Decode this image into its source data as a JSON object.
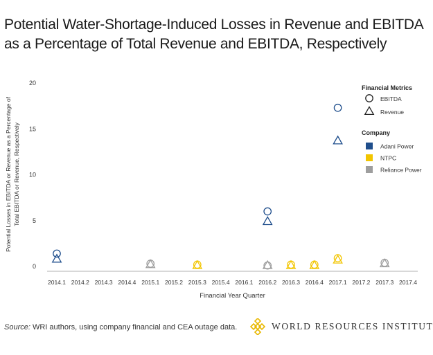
{
  "title_lines": [
    "Potential Water-Shortage-Induced Losses in Revenue and EBITDA",
    "as a Percentage of Total Revenue and EBITDA, Respectively"
  ],
  "source": {
    "label": "Source:",
    "text": "WRI authors, using company financial and CEA outage data."
  },
  "brand": {
    "name": "WORLD RESOURCES INSTITUTE",
    "logo_icon": "wri-knot-logo",
    "logo_color": "#e8b800"
  },
  "colors": {
    "Adani Power": "#1f4e8c",
    "NTPC": "#f2c500",
    "Reliance Power": "#9e9e9e",
    "axis": "#999999"
  },
  "chart_data": {
    "type": "scatter",
    "title": "Potential Water-Shortage-Induced Losses in Revenue and EBITDA as a Percentage of Total Revenue and EBITDA, Respectively",
    "xlabel": "Financial Year Quarter",
    "ylabel_lines": [
      "Potential Losses in EBITDA or Revenue as a Percentage of",
      "Total EBITDA or Revenue, Respectively"
    ],
    "categories": [
      "2014.1",
      "2014.2",
      "2014.3",
      "2014.4",
      "2015.1",
      "2015.2",
      "2015.3",
      "2015.4",
      "2016.1",
      "2016.2",
      "2016.3",
      "2016.4",
      "2017.1",
      "2017.2",
      "2017.3",
      "2017.4"
    ],
    "ylim": [
      0,
      20
    ],
    "yticks": [
      "0",
      "5",
      "10",
      "15",
      "20"
    ],
    "grid": false,
    "legend_position": "right",
    "legend": {
      "metrics_title": "Financial Metrics",
      "metrics": [
        {
          "name": "EBITDA",
          "marker": "circle"
        },
        {
          "name": "Revenue",
          "marker": "triangle"
        }
      ],
      "company_title": "Company",
      "companies": [
        "Adani Power",
        "NTPC",
        "Reliance Power"
      ]
    },
    "series": [
      {
        "company": "Adani Power",
        "metric": "EBITDA",
        "points": [
          [
            "2014.1",
            1.4
          ],
          [
            "2016.2",
            6.0
          ],
          [
            "2017.1",
            17.3
          ]
        ]
      },
      {
        "company": "Adani Power",
        "metric": "Revenue",
        "points": [
          [
            "2014.1",
            0.8
          ],
          [
            "2016.2",
            4.9
          ],
          [
            "2017.1",
            13.7
          ]
        ]
      },
      {
        "company": "NTPC",
        "metric": "EBITDA",
        "points": [
          [
            "2015.3",
            0.2
          ],
          [
            "2016.3",
            0.2
          ],
          [
            "2016.4",
            0.2
          ],
          [
            "2017.1",
            0.9
          ]
        ]
      },
      {
        "company": "NTPC",
        "metric": "Revenue",
        "points": [
          [
            "2015.3",
            0.1
          ],
          [
            "2016.3",
            0.1
          ],
          [
            "2016.4",
            0.1
          ],
          [
            "2017.1",
            0.7
          ]
        ]
      },
      {
        "company": "Reliance Power",
        "metric": "EBITDA",
        "points": [
          [
            "2015.1",
            0.3
          ],
          [
            "2016.2",
            0.1
          ],
          [
            "2017.3",
            0.4
          ]
        ]
      },
      {
        "company": "Reliance Power",
        "metric": "Revenue",
        "points": [
          [
            "2015.1",
            0.2
          ],
          [
            "2016.2",
            0.1
          ],
          [
            "2017.3",
            0.3
          ]
        ]
      }
    ]
  }
}
